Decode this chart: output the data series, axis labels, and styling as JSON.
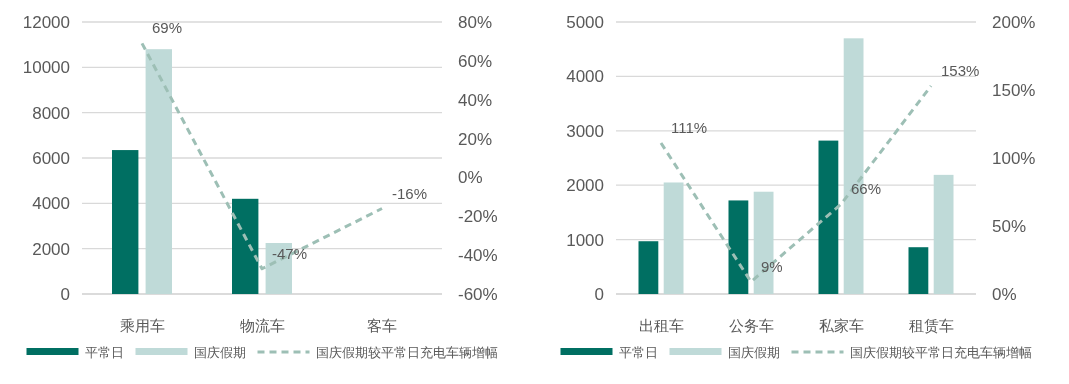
{
  "chart_data": [
    {
      "type": "bar",
      "categories": [
        "乘用车",
        "物流车",
        "客车"
      ],
      "series": [
        {
          "name": "平常日",
          "color": "#006f62",
          "values": [
            6350,
            4200,
            null
          ]
        },
        {
          "name": "国庆假期",
          "color": "#bfdad8",
          "values": [
            10800,
            2250,
            null
          ]
        },
        {
          "name": "国庆假期较平常日充电车辆增幅",
          "type": "line",
          "axis": "y2",
          "line_style": "dashed",
          "color": "#9dbfb5",
          "values": [
            69,
            -47,
            -16
          ],
          "value_labels": [
            "69%",
            "-47%",
            "-16%"
          ]
        }
      ],
      "ylim": [
        0,
        12000
      ],
      "yticks": [
        0,
        2000,
        4000,
        6000,
        8000,
        10000,
        12000
      ],
      "y2lim": [
        -60,
        80
      ],
      "y2ticks": [
        {
          "value": -60,
          "label": "-60%"
        },
        {
          "value": -40,
          "label": "-40%"
        },
        {
          "value": -20,
          "label": "-20%"
        },
        {
          "value": 0,
          "label": "0%"
        },
        {
          "value": 20,
          "label": "20%"
        },
        {
          "value": 40,
          "label": "40%"
        },
        {
          "value": 60,
          "label": "60%"
        },
        {
          "value": 80,
          "label": "80%"
        }
      ],
      "grid": "y",
      "legend": "bottom"
    },
    {
      "type": "bar",
      "categories": [
        "出租车",
        "公务车",
        "私家车",
        "租赁车"
      ],
      "series": [
        {
          "name": "平常日",
          "color": "#006f62",
          "values": [
            970,
            1720,
            2820,
            860
          ]
        },
        {
          "name": "国庆假期",
          "color": "#bfdad8",
          "values": [
            2050,
            1880,
            4700,
            2190
          ]
        },
        {
          "name": "国庆假期较平常日充电车辆增幅",
          "type": "line",
          "axis": "y2",
          "line_style": "dashed",
          "color": "#9dbfb5",
          "values": [
            111,
            9,
            66,
            153
          ],
          "value_labels": [
            "111%",
            "9%",
            "66%",
            "153%"
          ]
        }
      ],
      "ylim": [
        0,
        5000
      ],
      "yticks": [
        0,
        1000,
        2000,
        3000,
        4000,
        5000
      ],
      "y2lim": [
        0,
        200
      ],
      "y2ticks": [
        {
          "value": 0,
          "label": "0%"
        },
        {
          "value": 50,
          "label": "50%"
        },
        {
          "value": 100,
          "label": "100%"
        },
        {
          "value": 150,
          "label": "150%"
        },
        {
          "value": 200,
          "label": "200%"
        }
      ],
      "grid": "y",
      "legend": "bottom"
    }
  ]
}
